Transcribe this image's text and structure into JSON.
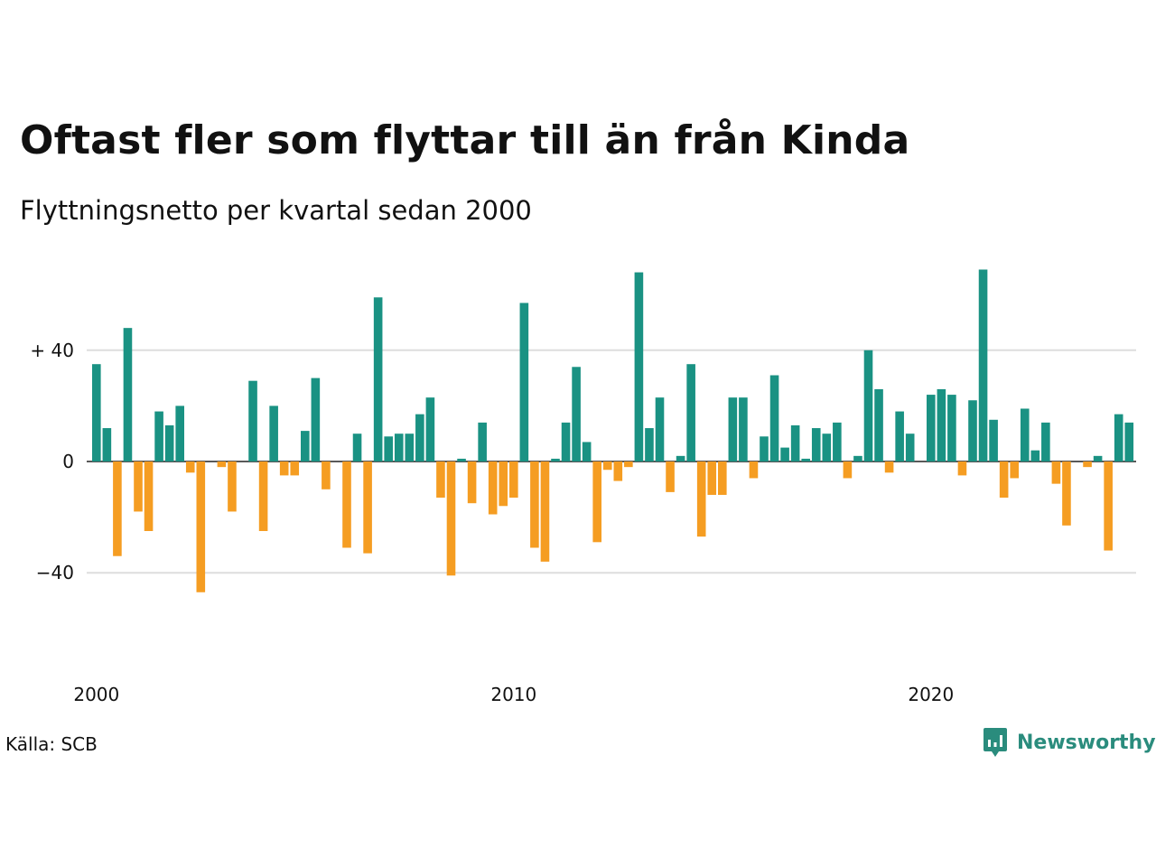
{
  "header": {
    "title": "Oftast fler som flyttar till än från Kinda",
    "subtitle": "Flyttningsnetto per kvartal sedan 2000"
  },
  "footer": {
    "source": "Källa: SCB",
    "brand": "Newsworthy"
  },
  "colors": {
    "positive": "#1a9283",
    "negative": "#f59d22",
    "grid": "#dddddd",
    "axis": "#222222",
    "brand": "#2a8c7d"
  },
  "chart_data": {
    "type": "bar",
    "x_start_year": 2000,
    "x_ticks": [
      "2000",
      "2010",
      "2020"
    ],
    "y_ticks": [
      {
        "value": 40,
        "label": "+ 40"
      },
      {
        "value": 0,
        "label": "0"
      },
      {
        "value": -40,
        "label": "−40"
      }
    ],
    "ylim": [
      -60,
      75
    ],
    "grid": true,
    "values": [
      35,
      12,
      -34,
      48,
      -18,
      -25,
      18,
      13,
      20,
      -4,
      -47,
      0,
      -2,
      -18,
      0,
      29,
      -25,
      20,
      -5,
      -5,
      11,
      30,
      -10,
      0,
      -31,
      10,
      -33,
      59,
      9,
      10,
      10,
      17,
      23,
      -13,
      -41,
      1,
      -15,
      14,
      -19,
      -16,
      -13,
      57,
      -31,
      -36,
      1,
      14,
      34,
      7,
      -29,
      -3,
      -7,
      -2,
      68,
      12,
      23,
      -11,
      2,
      35,
      -27,
      -12,
      -12,
      23,
      23,
      -6,
      9,
      31,
      5,
      13,
      1,
      12,
      10,
      14,
      -6,
      2,
      40,
      26,
      -4,
      18,
      10,
      0,
      24,
      26,
      24,
      -5,
      22,
      69,
      15,
      -13,
      -6,
      19,
      4,
      14,
      -8,
      -23,
      0,
      -2,
      2,
      -32,
      17,
      14
    ]
  }
}
